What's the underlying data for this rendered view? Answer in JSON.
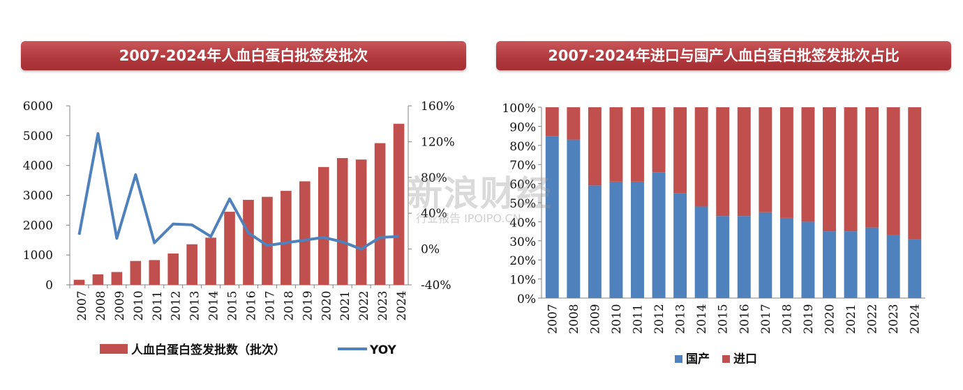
{
  "left_title": "2007-2024年人血白蛋白批签发批次",
  "right_title": "2007-2024年进口与国产人血白蛋白批签发批次占比",
  "watermark": {
    "main": "新浪财经",
    "sub": "行业报告 IPOIPO.CN"
  },
  "colors": {
    "bar": "#c0504d",
    "line": "#4f81bd",
    "domestic": "#4f81bd",
    "import": "#c0504d",
    "banner": "#b13a3e"
  },
  "chart_data": [
    {
      "type": "bar",
      "categories": [
        "2007",
        "2008",
        "2009",
        "2010",
        "2011",
        "2012",
        "2013",
        "2014",
        "2015",
        "2016",
        "2017",
        "2018",
        "2019",
        "2020",
        "2021",
        "2022",
        "2023",
        "2024"
      ],
      "series": [
        {
          "name": "人血白蛋白签发批数（批次）",
          "type": "bar",
          "axis": "left",
          "values": [
            170,
            350,
            430,
            800,
            830,
            1050,
            1360,
            1580,
            2450,
            2850,
            2950,
            3150,
            3470,
            3950,
            4250,
            4200,
            4750,
            5400
          ]
        },
        {
          "name": "YOY",
          "type": "line",
          "axis": "right",
          "values": [
            0.16,
            1.29,
            0.12,
            0.83,
            0.07,
            0.28,
            0.27,
            0.14,
            0.56,
            0.18,
            0.04,
            0.07,
            0.1,
            0.13,
            0.08,
            0.0,
            0.13,
            0.14
          ]
        }
      ],
      "left_axis": {
        "ylim": [
          0,
          6000
        ],
        "ticks": [
          "0",
          "1000",
          "2000",
          "3000",
          "4000",
          "5000",
          "6000"
        ]
      },
      "right_axis": {
        "ylim": [
          -0.4,
          1.6
        ],
        "ticks": [
          "-40%",
          "0%",
          "40%",
          "80%",
          "120%",
          "160%"
        ]
      },
      "legend": {
        "position": "bottom",
        "items": [
          "人血白蛋白签发批数（批次）",
          "YOY"
        ]
      }
    },
    {
      "type": "bar",
      "stacked": true,
      "categories": [
        "2007",
        "2008",
        "2009",
        "2010",
        "2011",
        "2012",
        "2013",
        "2014",
        "2015",
        "2016",
        "2017",
        "2018",
        "2019",
        "2020",
        "2021",
        "2022",
        "2023",
        "2024"
      ],
      "series": [
        {
          "name": "国产",
          "values": [
            0.85,
            0.83,
            0.59,
            0.61,
            0.61,
            0.66,
            0.55,
            0.48,
            0.43,
            0.43,
            0.45,
            0.42,
            0.4,
            0.35,
            0.35,
            0.37,
            0.33,
            0.31
          ]
        },
        {
          "name": "进口",
          "values": [
            0.15,
            0.17,
            0.41,
            0.39,
            0.39,
            0.34,
            0.45,
            0.52,
            0.57,
            0.57,
            0.55,
            0.58,
            0.6,
            0.65,
            0.65,
            0.63,
            0.67,
            0.69
          ]
        }
      ],
      "y_axis": {
        "ylim": [
          0,
          1
        ],
        "ticks": [
          "0%",
          "10%",
          "20%",
          "30%",
          "40%",
          "50%",
          "60%",
          "70%",
          "80%",
          "90%",
          "100%"
        ]
      },
      "legend": {
        "position": "bottom",
        "items": [
          "国产",
          "进口"
        ]
      }
    }
  ]
}
